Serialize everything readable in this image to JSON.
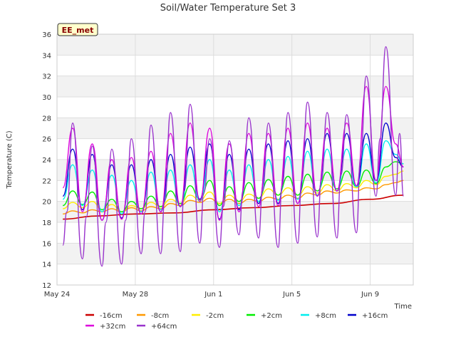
{
  "chart_data": {
    "type": "line",
    "title": "Soil/Water Temperature Set 3",
    "xlabel": "Time",
    "ylabel": "Temperature (C)",
    "site_label": "EE_met",
    "ylim": [
      12,
      36
    ],
    "xlim_days": [
      0,
      18.2
    ],
    "y_ticks": [
      12,
      14,
      16,
      18,
      20,
      22,
      24,
      26,
      28,
      30,
      32,
      34,
      36
    ],
    "x_ticks": [
      {
        "day": 0,
        "label": "May 24"
      },
      {
        "day": 4,
        "label": "May 28"
      },
      {
        "day": 8,
        "label": "Jun 1"
      },
      {
        "day": 12,
        "label": "Jun 5"
      },
      {
        "day": 16,
        "label": "Jun 9"
      }
    ],
    "grid": true,
    "legend_position": "bottom",
    "series": [
      {
        "name": "-16cm",
        "color": "#cc0000",
        "width": 1.6,
        "x": [
          0.3,
          2,
          4,
          6,
          8,
          10,
          12,
          14,
          16,
          17.7
        ],
        "y": [
          18.3,
          18.6,
          18.8,
          18.9,
          19.2,
          19.4,
          19.6,
          19.8,
          20.2,
          20.6
        ]
      },
      {
        "name": "-8cm",
        "color": "#ff9900",
        "width": 1.4,
        "x": [
          0.3,
          0.8,
          1.3,
          1.8,
          2.3,
          2.8,
          3.3,
          3.8,
          4.3,
          4.8,
          5.3,
          5.8,
          6.3,
          6.8,
          7.3,
          7.8,
          8.3,
          8.8,
          9.3,
          9.8,
          10.3,
          10.8,
          11.3,
          11.8,
          12.3,
          12.8,
          13.3,
          13.8,
          14.3,
          14.8,
          15.3,
          15.8,
          16.3,
          16.8,
          17.3,
          17.7
        ],
        "y": [
          18.8,
          19.1,
          18.9,
          19.2,
          19.0,
          19.3,
          19.0,
          19.4,
          19.1,
          19.5,
          19.3,
          19.8,
          19.6,
          20.1,
          19.9,
          20.3,
          19.8,
          20.2,
          19.8,
          20.2,
          20.0,
          20.4,
          20.2,
          20.6,
          20.3,
          20.8,
          20.6,
          21.0,
          20.8,
          21.1,
          21.0,
          21.3,
          21.2,
          21.6,
          21.8,
          22.0
        ]
      },
      {
        "name": "-2cm",
        "color": "#ffee00",
        "width": 1.4,
        "x": [
          0.3,
          0.8,
          1.3,
          1.8,
          2.3,
          2.8,
          3.3,
          3.8,
          4.3,
          4.8,
          5.3,
          5.8,
          6.3,
          6.8,
          7.3,
          7.8,
          8.3,
          8.8,
          9.3,
          9.8,
          10.3,
          10.8,
          11.3,
          11.8,
          12.3,
          12.8,
          13.3,
          13.8,
          14.3,
          14.8,
          15.3,
          15.8,
          16.3,
          16.8,
          17.3,
          17.7
        ],
        "y": [
          19.3,
          19.9,
          19.4,
          20.0,
          19.2,
          19.7,
          19.0,
          19.6,
          19.3,
          19.9,
          19.5,
          20.2,
          19.8,
          20.6,
          20.1,
          20.9,
          19.8,
          20.6,
          20.0,
          20.7,
          20.3,
          21.2,
          20.6,
          21.3,
          20.6,
          21.4,
          20.8,
          21.6,
          21.0,
          21.7,
          21.3,
          22.0,
          21.6,
          22.4,
          22.6,
          22.9
        ]
      },
      {
        "name": "+2cm",
        "color": "#00ee00",
        "width": 1.4,
        "x": [
          0.3,
          0.8,
          1.3,
          1.8,
          2.3,
          2.8,
          3.3,
          3.8,
          4.3,
          4.8,
          5.3,
          5.8,
          6.3,
          6.8,
          7.3,
          7.8,
          8.3,
          8.8,
          9.3,
          9.8,
          10.3,
          10.8,
          11.3,
          11.8,
          12.3,
          12.8,
          13.3,
          13.8,
          14.3,
          14.8,
          15.3,
          15.8,
          16.3,
          16.8,
          17.3,
          17.7
        ],
        "y": [
          19.6,
          21.0,
          19.7,
          20.9,
          19.2,
          20.2,
          19.0,
          20.0,
          19.3,
          20.5,
          19.5,
          21.0,
          19.8,
          21.5,
          20.2,
          22.0,
          19.6,
          21.4,
          20.0,
          21.8,
          20.3,
          22.1,
          20.6,
          22.4,
          20.6,
          22.6,
          21.0,
          22.8,
          21.2,
          22.9,
          21.4,
          23.0,
          21.7,
          23.3,
          23.8,
          23.6
        ]
      },
      {
        "name": "+8cm",
        "color": "#00eeee",
        "width": 1.4,
        "x": [
          0.3,
          0.8,
          1.3,
          1.8,
          2.3,
          2.8,
          3.3,
          3.8,
          4.3,
          4.8,
          5.3,
          5.8,
          6.3,
          6.8,
          7.3,
          7.8,
          8.3,
          8.8,
          9.3,
          9.8,
          10.3,
          10.8,
          11.3,
          11.8,
          12.3,
          12.8,
          13.3,
          13.8,
          14.3,
          14.8,
          15.3,
          15.8,
          16.3,
          16.8,
          17.3,
          17.7
        ],
        "y": [
          20.2,
          23.5,
          19.6,
          23.0,
          19.0,
          22.5,
          18.8,
          22.0,
          19.0,
          22.8,
          19.2,
          23.0,
          19.5,
          23.5,
          20.0,
          24.0,
          19.0,
          23.0,
          19.6,
          23.5,
          20.0,
          24.0,
          20.1,
          24.3,
          20.2,
          24.8,
          20.6,
          25.0,
          21.0,
          25.0,
          21.4,
          25.5,
          21.8,
          25.8,
          24.5,
          23.6
        ]
      },
      {
        "name": "+16cm",
        "color": "#0000cc",
        "width": 1.4,
        "x": [
          0.3,
          0.8,
          1.3,
          1.8,
          2.3,
          2.8,
          3.3,
          3.8,
          4.3,
          4.8,
          5.3,
          5.8,
          6.3,
          6.8,
          7.3,
          7.8,
          8.3,
          8.8,
          9.3,
          9.8,
          10.3,
          10.8,
          11.3,
          11.8,
          12.3,
          12.8,
          13.3,
          13.8,
          14.3,
          14.8,
          15.3,
          15.8,
          16.3,
          16.8,
          17.3,
          17.7
        ],
        "y": [
          20.5,
          25.0,
          19.2,
          24.5,
          18.2,
          23.5,
          18.4,
          23.5,
          18.8,
          24.0,
          19.0,
          24.5,
          19.5,
          25.2,
          20.2,
          25.5,
          18.3,
          24.5,
          19.2,
          25.0,
          19.8,
          25.5,
          19.8,
          25.8,
          19.8,
          26.0,
          20.5,
          26.5,
          21.0,
          26.5,
          21.5,
          26.5,
          22.0,
          27.5,
          24.2,
          23.3
        ]
      },
      {
        "name": "+32cm",
        "color": "#dd00dd",
        "width": 1.4,
        "x": [
          0.3,
          0.8,
          1.3,
          1.8,
          2.3,
          2.8,
          3.3,
          3.8,
          4.3,
          4.8,
          5.3,
          5.8,
          6.3,
          6.8,
          7.3,
          7.8,
          8.3,
          8.8,
          9.3,
          9.8,
          10.3,
          10.8,
          11.3,
          11.8,
          12.3,
          12.8,
          13.3,
          13.8,
          14.3,
          14.8,
          15.3,
          15.8,
          16.3,
          16.8,
          17.3,
          17.7
        ],
        "y": [
          21.3,
          27.0,
          19.0,
          25.5,
          18.2,
          24.0,
          18.3,
          24.2,
          18.8,
          24.8,
          19.0,
          26.5,
          19.5,
          27.5,
          20.0,
          27.0,
          18.2,
          25.5,
          19.0,
          26.5,
          19.5,
          26.5,
          19.6,
          27.0,
          19.8,
          27.5,
          20.5,
          27.0,
          21.0,
          27.5,
          21.5,
          31.0,
          22.0,
          31.0,
          25.5,
          23.3
        ]
      },
      {
        "name": "+64cm",
        "color": "#9933cc",
        "width": 1.4,
        "x": [
          0.3,
          0.5,
          0.8,
          1.3,
          1.5,
          1.8,
          2.3,
          2.5,
          2.8,
          3.3,
          3.5,
          3.8,
          4.3,
          4.5,
          4.8,
          5.3,
          5.5,
          5.8,
          6.3,
          6.5,
          6.8,
          7.3,
          7.5,
          7.8,
          8.3,
          8.5,
          8.8,
          9.3,
          9.5,
          9.8,
          10.3,
          10.5,
          10.8,
          11.3,
          11.5,
          11.8,
          12.3,
          12.5,
          12.8,
          13.3,
          13.5,
          13.8,
          14.3,
          14.5,
          14.8,
          15.3,
          15.5,
          15.8,
          16.3,
          16.5,
          16.8,
          17.3,
          17.5,
          17.7
        ],
        "y": [
          15.8,
          19.0,
          27.5,
          14.5,
          18.5,
          25.3,
          13.8,
          18.0,
          25.0,
          14.0,
          18.2,
          26.0,
          15.0,
          19.0,
          27.3,
          15.0,
          20.0,
          28.5,
          15.2,
          21.0,
          29.3,
          16.0,
          20.8,
          26.0,
          15.6,
          19.5,
          25.8,
          16.8,
          21.0,
          28.0,
          16.5,
          21.0,
          27.5,
          15.6,
          21.5,
          28.5,
          16.0,
          22.0,
          29.5,
          16.6,
          22.0,
          28.5,
          16.5,
          22.5,
          28.3,
          17.0,
          24.0,
          32.0,
          20.5,
          26.0,
          34.8,
          20.6,
          26.5,
          20.5
        ]
      }
    ]
  }
}
